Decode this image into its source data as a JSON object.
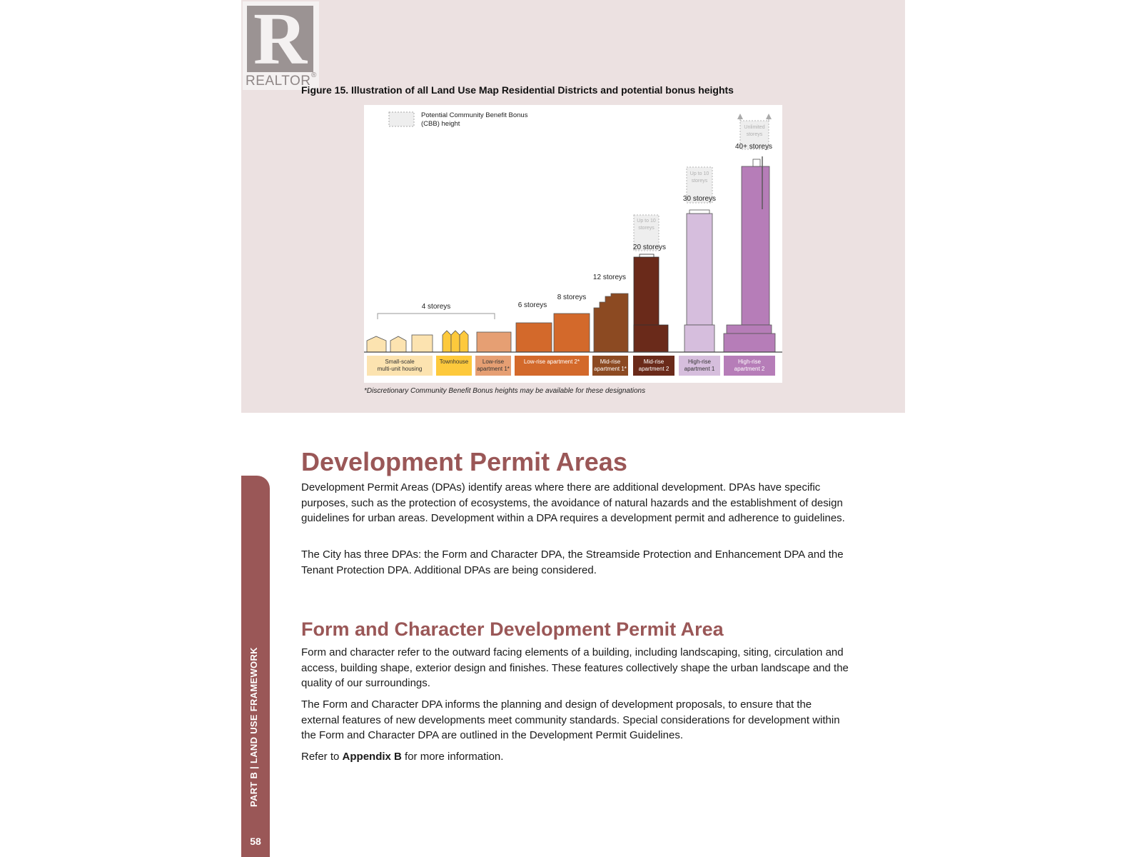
{
  "logo": {
    "letter": "R",
    "word": "REALTOR",
    "reg": "®"
  },
  "figure": {
    "caption": "Figure 15. Illustration of all Land Use Map Residential Districts and potential bonus heights",
    "note": "*Discretionary Community Benefit Bonus heights may be available for these designations"
  },
  "chart_data": {
    "type": "bar",
    "legend": {
      "line1": "Potential Community Benefit Bonus",
      "line2": "(CBB) height"
    },
    "categories": [
      {
        "line1": "Small-scale",
        "line2": "multi-unit housing",
        "color": "#fce3b0",
        "text_color": "#333333"
      },
      {
        "line1": "Townhouse",
        "line2": "",
        "color": "#fdc93c",
        "text_color": "#333333"
      },
      {
        "line1": "Low-rise",
        "line2": "apartment 1*",
        "color": "#e69f73",
        "text_color": "#333333"
      },
      {
        "line1": "Low-rise apartment 2*",
        "line2": "",
        "color": "#d3692b",
        "text_color": "#ffffff"
      },
      {
        "line1": "Mid-rise",
        "line2": "apartment 1*",
        "color": "#8c4a22",
        "text_color": "#ffffff"
      },
      {
        "line1": "Mid-rise",
        "line2": "apartment 2",
        "color": "#6a2a1a",
        "text_color": "#ffffff"
      },
      {
        "line1": "High-rise",
        "line2": "apartment 1",
        "color": "#d6bedd",
        "text_color": "#333333"
      },
      {
        "line1": "High-rise",
        "line2": "apartment 2",
        "color": "#b67db8",
        "text_color": "#ffffff"
      }
    ],
    "height_labels": [
      "4 storeys",
      "6 storeys",
      "8 storeys",
      "12 storeys",
      "20 storeys",
      "30 storeys",
      "40+ storeys"
    ],
    "bonus_labels": [
      {
        "line1": "Up to 10",
        "line2": "storeys"
      },
      {
        "line1": "Up to 10",
        "line2": "storeys"
      },
      {
        "line1": "Unlimited",
        "line2": "storeys"
      }
    ]
  },
  "sidebar": {
    "label": "PART B  |  LAND USE FRAMEWORK",
    "page_number": "58"
  },
  "section1": {
    "title": "Development Permit Areas",
    "p1": "Development Permit Areas (DPAs) identify areas where there are additional development. DPAs have specific purposes, such as the protection of ecosystems, the avoidance of natural hazards and the establishment of design guidelines for urban areas. Development within a DPA requires a development permit and adherence to guidelines.",
    "p2": "The City has three DPAs: the Form and Character DPA, the Streamside Protection and Enhancement DPA and the Tenant Protection DPA. Additional DPAs are being considered."
  },
  "section2": {
    "title": "Form and Character Development Permit Area",
    "p1": "Form and character refer to the outward facing elements of a building, including landscaping, siting, circulation and access, building shape, exterior design and finishes. These features collectively shape the urban landscape and the quality of our surroundings.",
    "p2": "The Form and Character DPA informs the planning and design of development proposals, to ensure that the external features of new developments meet community standards. Special considerations for development within the Form and Character DPA are outlined in the Development Permit Guidelines.",
    "p3_pre": "Refer to ",
    "p3_bold": "Appendix B",
    "p3_post": " for more information."
  }
}
